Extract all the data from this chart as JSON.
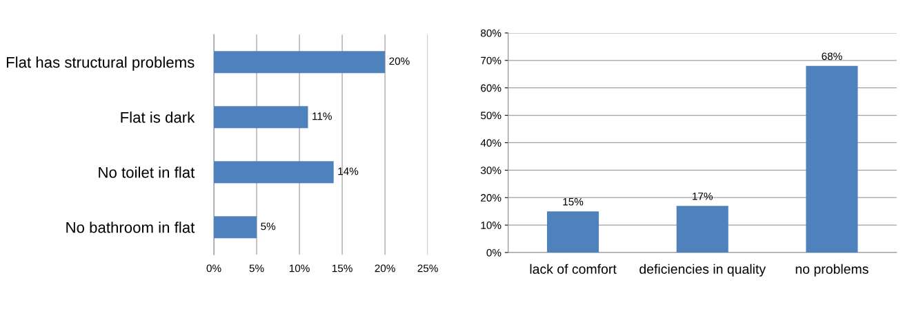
{
  "chart_data": [
    {
      "type": "bar",
      "orientation": "horizontal",
      "categories": [
        "Flat has structural problems",
        "Flat is dark",
        "No toilet in flat",
        "No bathroom in flat"
      ],
      "values": [
        20,
        11,
        14,
        5
      ],
      "value_labels": [
        "20%",
        "11%",
        "14%",
        "5%"
      ],
      "color": "#4f81bd",
      "xlim": [
        0,
        25
      ],
      "xticks": [
        {
          "value": 0,
          "label": "0%"
        },
        {
          "value": 5,
          "label": "5%"
        },
        {
          "value": 10,
          "label": "10%"
        },
        {
          "value": 15,
          "label": "15%"
        },
        {
          "value": 20,
          "label": "20%"
        },
        {
          "value": 25,
          "label": "25%"
        }
      ],
      "grid": "x"
    },
    {
      "type": "bar",
      "categories": [
        "lack of comfort",
        "deficiencies in quality",
        "no problems"
      ],
      "values": [
        15,
        17,
        68
      ],
      "value_labels": [
        "15%",
        "17%",
        "68%"
      ],
      "color": "#4f81bd",
      "ylim": [
        0,
        80
      ],
      "yticks": [
        {
          "value": 0,
          "label": "0%"
        },
        {
          "value": 10,
          "label": "10%"
        },
        {
          "value": 20,
          "label": "20%"
        },
        {
          "value": 30,
          "label": "30%"
        },
        {
          "value": 40,
          "label": "40%"
        },
        {
          "value": 50,
          "label": "50%"
        },
        {
          "value": 60,
          "label": "60%"
        },
        {
          "value": 70,
          "label": "70%"
        },
        {
          "value": 80,
          "label": "80%"
        }
      ],
      "grid": "y"
    }
  ]
}
